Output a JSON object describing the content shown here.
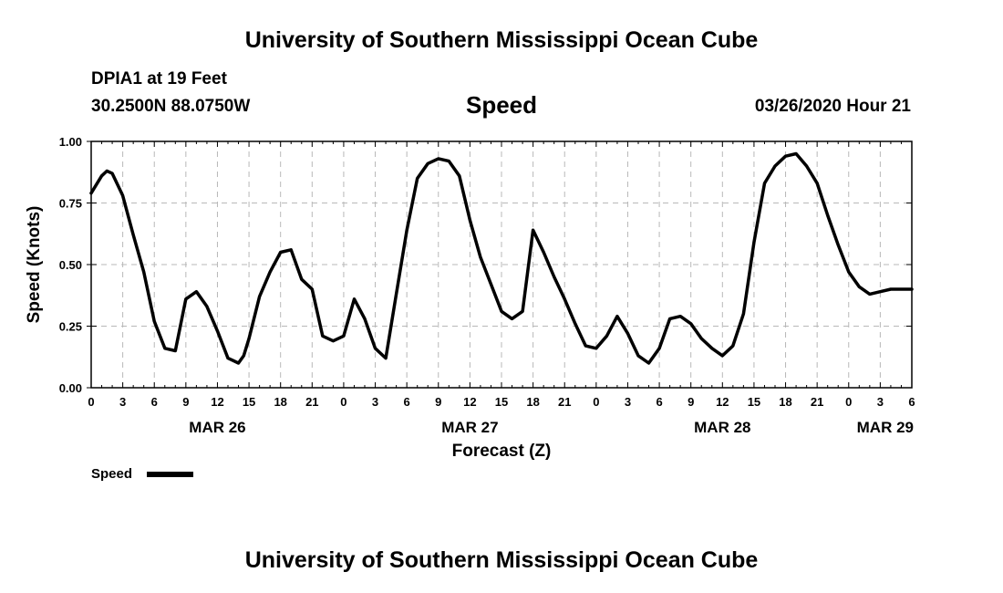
{
  "header": {
    "title": "University of Southern Mississippi Ocean Cube",
    "station": "DPIA1 at 19 Feet",
    "coordinates": "30.2500N 88.0750W",
    "variable": "Speed",
    "timestamp": "03/26/2020 Hour 21"
  },
  "footer": {
    "title": "University of Southern Mississippi Ocean Cube"
  },
  "colors": {
    "line": "#000000",
    "grid": "#b8b8b8",
    "background": "#ffffff"
  },
  "chart_data": {
    "type": "line",
    "title": "Speed",
    "xlabel": "Forecast (Z)",
    "ylabel": "Speed (Knots)",
    "xlim": [
      0,
      78
    ],
    "ylim": [
      0,
      1
    ],
    "yticks": [
      0,
      0.25,
      0.5,
      0.75,
      1
    ],
    "ytick_labels": [
      "0.00",
      "0.25",
      "0.50",
      "0.75",
      "1.00"
    ],
    "xticks": [
      0,
      3,
      6,
      9,
      12,
      15,
      18,
      21,
      24,
      27,
      30,
      33,
      36,
      39,
      42,
      45,
      48,
      51,
      54,
      57,
      60,
      63,
      66,
      69,
      72,
      75,
      78
    ],
    "xtick_labels": [
      "0",
      "3",
      "6",
      "9",
      "12",
      "15",
      "18",
      "21",
      "0",
      "3",
      "6",
      "9",
      "12",
      "15",
      "18",
      "21",
      "0",
      "3",
      "6",
      "9",
      "12",
      "15",
      "18",
      "21",
      "0",
      "3",
      "6"
    ],
    "day_labels": [
      {
        "label": "MAR 26",
        "x": 12
      },
      {
        "label": "MAR 27",
        "x": 36
      },
      {
        "label": "MAR 28",
        "x": 60
      },
      {
        "label": "MAR 29",
        "x": 78
      }
    ],
    "grid": true,
    "legend": "bottom-left",
    "series": [
      {
        "name": "Speed",
        "x": [
          0,
          1,
          1.5,
          2,
          3,
          4,
          5,
          6,
          7,
          8,
          9,
          10,
          11,
          12,
          13,
          14,
          14.5,
          15,
          16,
          17,
          18,
          19,
          20,
          21,
          22,
          23,
          24,
          25,
          26,
          27,
          28,
          29,
          30,
          31,
          32,
          33,
          34,
          35,
          36,
          37,
          38,
          39,
          40,
          41,
          42,
          43,
          44,
          45,
          46,
          47,
          48,
          49,
          50,
          51,
          52,
          53,
          54,
          55,
          56,
          57,
          58,
          59,
          60,
          61,
          62,
          63,
          64,
          65,
          66,
          67,
          68,
          69,
          70,
          71,
          72,
          73,
          74,
          75,
          76,
          77,
          78
        ],
        "values": [
          0.79,
          0.86,
          0.88,
          0.87,
          0.78,
          0.62,
          0.47,
          0.27,
          0.16,
          0.15,
          0.36,
          0.39,
          0.33,
          0.23,
          0.12,
          0.1,
          0.13,
          0.2,
          0.37,
          0.47,
          0.55,
          0.56,
          0.44,
          0.4,
          0.21,
          0.19,
          0.21,
          0.36,
          0.28,
          0.16,
          0.12,
          0.38,
          0.64,
          0.85,
          0.91,
          0.93,
          0.92,
          0.86,
          0.68,
          0.53,
          0.42,
          0.31,
          0.28,
          0.31,
          0.64,
          0.55,
          0.45,
          0.36,
          0.26,
          0.17,
          0.16,
          0.21,
          0.29,
          0.22,
          0.13,
          0.1,
          0.16,
          0.28,
          0.29,
          0.26,
          0.2,
          0.16,
          0.13,
          0.17,
          0.3,
          0.59,
          0.83,
          0.9,
          0.94,
          0.95,
          0.9,
          0.83,
          0.7,
          0.58,
          0.47,
          0.41,
          0.38,
          0.39,
          0.4,
          0.4,
          0.4
        ]
      }
    ]
  },
  "legend": {
    "label": "Speed"
  }
}
